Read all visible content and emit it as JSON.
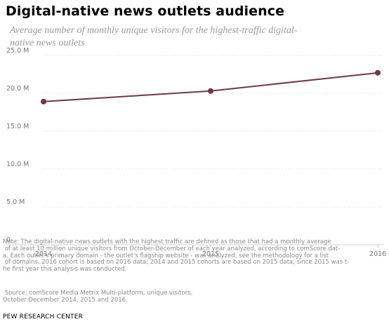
{
  "chart_data": {
    "type": "line",
    "title": "Digital-native news outlets audience",
    "subtitle": "Average number of monthly unique visitors for the highest-traffic digital-native news outlets",
    "x": [
      "2014",
      "2015",
      "2016"
    ],
    "series": [
      {
        "values": [
          18.9,
          20.3,
          22.7
        ],
        "color": "#6e3a46"
      }
    ],
    "y_ticks": [
      0,
      5,
      10,
      15,
      20,
      25
    ],
    "y_tick_labels": [
      "0",
      "5.0 M",
      "10.0 M",
      "15.0 M",
      "20.0 M",
      "25.0 M"
    ],
    "ylim": [
      0,
      25
    ],
    "grid": true,
    "legend": "none",
    "xlabel": "",
    "ylabel": ""
  },
  "footer": {
    "note": "Note: The digital-native news outlets with the highest traffic are defined as those that had a monthly average\n of at least 10 million unique visitors from October-December of each year analyzed, according to comScore dat-\na. Each outlet's primary domain - the outlet's flagship website - was analyzed; see the methodology for a list\n of domains. 2016 cohort is based on 2016 data; 2014 and 2015 cohorts are based on 2015 data, since 2015 was t-\nhe first year this analysis was conducted.",
    "source": " Source: comScore Media Metrix Multi-platform, unique visitors,\nOctober-December 2014, 2015 and 2016.",
    "credit": "PEW RESEARCH CENTER"
  }
}
